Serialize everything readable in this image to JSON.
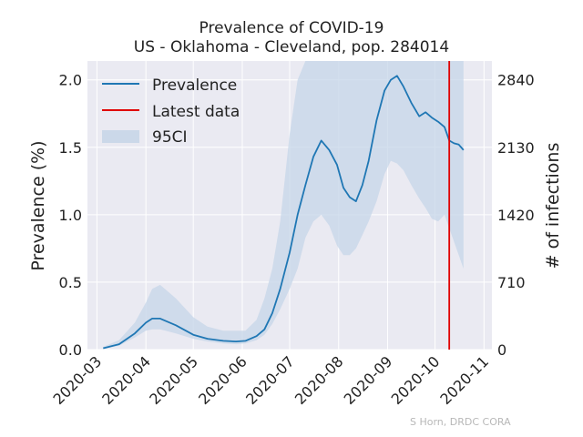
{
  "chart_data": {
    "type": "line",
    "title": "Prevalence of COVID-19",
    "subtitle": "US - Oklahoma - Cleveland, pop. 284014",
    "ylabel": "Prevalence (%)",
    "y2label": "# of infections",
    "xlabel": "",
    "xticks": [
      "2020-03",
      "2020-04",
      "2020-05",
      "2020-06",
      "2020-07",
      "2020-08",
      "2020-09",
      "2020-10",
      "2020-11"
    ],
    "yticks": [
      "0.0",
      "0.5",
      "1.0",
      "1.5",
      "2.0"
    ],
    "y2ticks": [
      "0",
      "710",
      "1420",
      "2130",
      "2840"
    ],
    "ylim": [
      0,
      2.14
    ],
    "grid": true,
    "legend": {
      "position": "top-left",
      "entries": [
        "Prevalence",
        "Latest data",
        "95CI"
      ]
    },
    "latest_data_date": "2020-10-10",
    "watermark": "S Horn, DRDC CORA",
    "colors": {
      "prevalence": "#1f77b4",
      "latest": "#e00000",
      "ci": "#c5d5e8",
      "background": "#eaeaf2"
    },
    "series": [
      {
        "name": "Prevalence",
        "x": [
          "2020-03-05",
          "2020-03-15",
          "2020-03-25",
          "2020-04-01",
          "2020-04-05",
          "2020-04-10",
          "2020-04-20",
          "2020-05-01",
          "2020-05-10",
          "2020-05-20",
          "2020-05-28",
          "2020-06-03",
          "2020-06-10",
          "2020-06-15",
          "2020-06-20",
          "2020-06-25",
          "2020-07-01",
          "2020-07-06",
          "2020-07-11",
          "2020-07-16",
          "2020-07-21",
          "2020-07-26",
          "2020-07-31",
          "2020-08-04",
          "2020-08-08",
          "2020-08-12",
          "2020-08-16",
          "2020-08-20",
          "2020-08-25",
          "2020-08-30",
          "2020-09-03",
          "2020-09-07",
          "2020-09-11",
          "2020-09-16",
          "2020-09-21",
          "2020-09-25",
          "2020-09-29",
          "2020-10-03",
          "2020-10-07",
          "2020-10-10",
          "2020-10-13",
          "2020-10-16",
          "2020-10-19"
        ],
        "values": [
          0.01,
          0.04,
          0.12,
          0.2,
          0.23,
          0.23,
          0.18,
          0.11,
          0.08,
          0.065,
          0.06,
          0.065,
          0.1,
          0.15,
          0.27,
          0.45,
          0.72,
          1.0,
          1.22,
          1.43,
          1.55,
          1.48,
          1.37,
          1.2,
          1.13,
          1.1,
          1.22,
          1.4,
          1.7,
          1.92,
          2.0,
          2.03,
          1.95,
          1.83,
          1.73,
          1.76,
          1.72,
          1.69,
          1.65,
          1.55,
          1.53,
          1.52,
          1.48
        ]
      },
      {
        "name": "95CI",
        "x": [
          "2020-03-05",
          "2020-03-15",
          "2020-03-25",
          "2020-04-01",
          "2020-04-05",
          "2020-04-10",
          "2020-04-20",
          "2020-05-01",
          "2020-05-10",
          "2020-05-20",
          "2020-05-28",
          "2020-06-03",
          "2020-06-10",
          "2020-06-15",
          "2020-06-20",
          "2020-06-25",
          "2020-07-01",
          "2020-07-06",
          "2020-07-11",
          "2020-07-16",
          "2020-07-21",
          "2020-07-26",
          "2020-07-31",
          "2020-08-04",
          "2020-08-08",
          "2020-08-12",
          "2020-08-16",
          "2020-08-20",
          "2020-08-25",
          "2020-08-30",
          "2020-09-03",
          "2020-09-07",
          "2020-09-11",
          "2020-09-16",
          "2020-09-21",
          "2020-09-25",
          "2020-09-29",
          "2020-10-03",
          "2020-10-07",
          "2020-10-10",
          "2020-10-13",
          "2020-10-16",
          "2020-10-19"
        ],
        "lower": [
          0.005,
          0.03,
          0.09,
          0.14,
          0.15,
          0.15,
          0.12,
          0.08,
          0.06,
          0.045,
          0.04,
          0.045,
          0.07,
          0.11,
          0.19,
          0.3,
          0.45,
          0.6,
          0.83,
          0.95,
          1.0,
          0.92,
          0.77,
          0.7,
          0.7,
          0.75,
          0.85,
          0.95,
          1.1,
          1.3,
          1.4,
          1.38,
          1.33,
          1.22,
          1.12,
          1.05,
          0.97,
          0.95,
          1.0,
          0.9,
          0.8,
          0.7,
          0.6
        ],
        "upper": [
          0.02,
          0.07,
          0.2,
          0.35,
          0.45,
          0.48,
          0.38,
          0.24,
          0.17,
          0.14,
          0.14,
          0.14,
          0.22,
          0.38,
          0.6,
          0.95,
          1.6,
          2.0,
          2.14,
          2.14,
          2.14,
          2.14,
          2.14,
          2.14,
          2.14,
          2.14,
          2.14,
          2.14,
          2.14,
          2.14,
          2.14,
          2.14,
          2.14,
          2.14,
          2.14,
          2.14,
          2.14,
          2.14,
          2.14,
          2.14,
          2.14,
          2.14,
          2.14
        ]
      }
    ]
  }
}
